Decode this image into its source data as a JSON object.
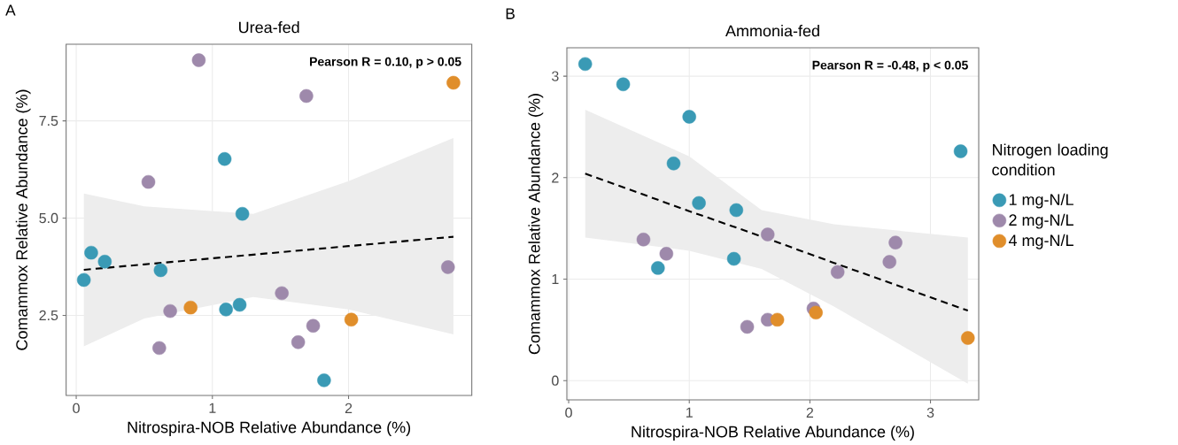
{
  "chart_data": [
    {
      "type": "scatter",
      "title": "Urea-fed",
      "xlabel": "Nitrospira-NOB Relative Abundance (%)",
      "ylabel": "Comammox Relative Abundance (%)",
      "annotations": [
        "A",
        "Pearson R = 0.10, p > 0.05"
      ],
      "xlim": [
        -0.074,
        2.905
      ],
      "ylim": [
        0.44,
        9.47
      ],
      "xticks": [
        0,
        1,
        2
      ],
      "yticks": [
        2.5,
        {
          "value": 5,
          "label": "5.0"
        },
        7.5
      ],
      "grid": true,
      "marker": "circle",
      "legend": false,
      "series": [
        {
          "color": "#3a9ab5",
          "x": [
            0.056,
            0.11,
            0.21,
            0.62,
            1.09,
            1.22,
            1.1,
            1.2,
            1.82
          ],
          "values": [
            3.41,
            4.11,
            3.88,
            3.66,
            6.52,
            5.11,
            2.65,
            2.77,
            0.83
          ]
        },
        {
          "color": "#9e89ab",
          "x": [
            0.9,
            1.69,
            0.53,
            0.69,
            0.61,
            1.51,
            1.74,
            1.63,
            2.73
          ],
          "values": [
            9.06,
            8.14,
            5.93,
            2.61,
            1.66,
            3.07,
            2.23,
            1.81,
            3.74
          ]
        },
        {
          "color": "#e08e2b",
          "x": [
            2.77,
            0.84,
            2.02
          ],
          "values": [
            8.48,
            2.7,
            2.39
          ]
        },
        {
          "type": "line",
          "color": "#000000",
          "line_style": "dashed",
          "marker": "none",
          "x": [
            0.056,
            0.5,
            1.3,
            2.0,
            2.77
          ],
          "values": [
            3.67,
            3.81,
            4.06,
            4.28,
            4.52
          ],
          "upper": [
            5.63,
            5.3,
            5.11,
            5.95,
            7.06
          ],
          "lower": [
            1.7,
            2.42,
            2.97,
            2.65,
            2.01
          ]
        }
      ]
    },
    {
      "type": "scatter",
      "title": "Ammonia-fed",
      "xlabel": "Nitrospira-NOB Relative Abundance (%)",
      "ylabel": "Comammox Relative Abundance (%)",
      "annotations": [
        "B",
        "Pearson R = -0.48, p < 0.05"
      ],
      "legend_title": "Nitrogen loading condition",
      "xlim": [
        -0.015,
        3.4
      ],
      "ylim": [
        -0.19,
        3.28
      ],
      "xticks": [
        0,
        1,
        2,
        3
      ],
      "yticks": [
        0,
        1,
        2,
        3
      ],
      "grid": true,
      "marker": "circle",
      "legend": "right",
      "series": [
        {
          "name": "1 mg-N/L",
          "color": "#3a9ab5",
          "x": [
            0.137,
            0.452,
            1.0,
            0.87,
            1.08,
            1.39,
            1.37,
            0.74,
            3.25
          ],
          "values": [
            3.12,
            2.92,
            2.6,
            2.14,
            1.75,
            1.68,
            1.2,
            1.11,
            2.26
          ]
        },
        {
          "name": "2 mg-N/L",
          "color": "#9e89ab",
          "x": [
            0.62,
            0.81,
            1.65,
            2.23,
            2.66,
            2.71,
            1.48,
            1.65,
            2.03
          ],
          "values": [
            1.39,
            1.25,
            1.44,
            1.07,
            1.17,
            1.36,
            0.53,
            0.6,
            0.71
          ]
        },
        {
          "name": "4 mg-N/L",
          "color": "#e08e2b",
          "x": [
            1.73,
            2.05,
            3.31
          ],
          "values": [
            0.6,
            0.67,
            0.42
          ]
        },
        {
          "type": "line",
          "color": "#000000",
          "line_style": "dashed",
          "marker": "none",
          "x": [
            0.137,
            1.0,
            1.6,
            2.2,
            3.31
          ],
          "values": [
            2.04,
            1.67,
            1.42,
            1.16,
            0.69
          ],
          "upper": [
            2.67,
            2.21,
            1.68,
            1.54,
            1.41
          ],
          "lower": [
            1.41,
            1.28,
            1.1,
            0.73,
            -0.03
          ]
        }
      ]
    }
  ]
}
